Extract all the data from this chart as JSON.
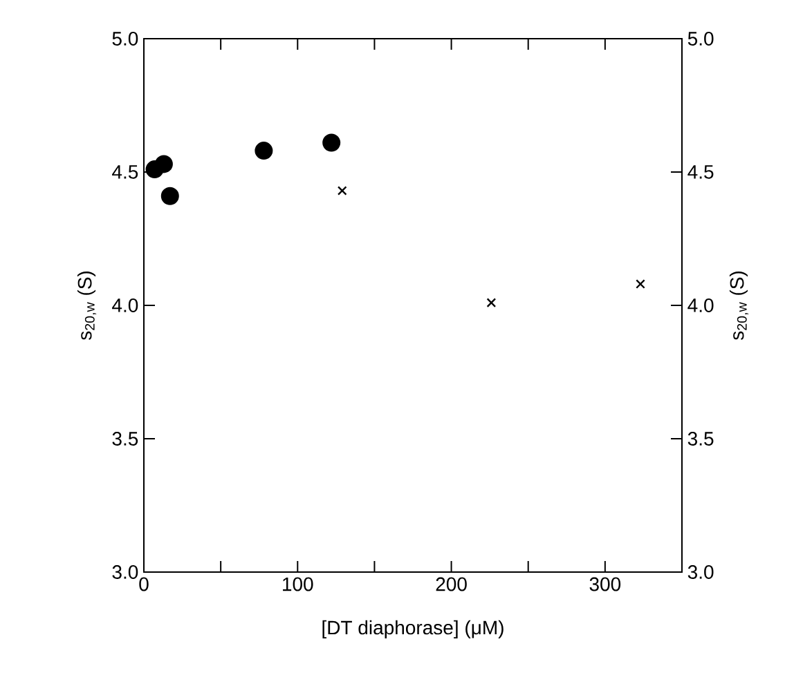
{
  "chart_data": {
    "type": "scatter",
    "xlabel": "[DT diaphorase] (μM)",
    "ylabel": "s$_{20,w}$  (S)",
    "y2label": "s$_{20,w}$  (S)",
    "xlim": [
      0,
      350
    ],
    "ylim": [
      3.0,
      5.0
    ],
    "y2lim": [
      3.0,
      5.0
    ],
    "xticks": [
      0,
      {
        "value": 50,
        "label": null
      },
      100,
      {
        "value": 150,
        "label": null
      },
      200,
      {
        "value": 250,
        "label": null
      },
      300
    ],
    "yticks": [
      {
        "value": 3.0,
        "label": "3.0"
      },
      {
        "value": 3.5,
        "label": "3.5"
      },
      {
        "value": 4.0,
        "label": "4.0"
      },
      {
        "value": 4.5,
        "label": "4.5"
      },
      {
        "value": 5.0,
        "label": "5.0"
      }
    ],
    "y2ticks": [
      {
        "value": 3.0,
        "label": "3.0"
      },
      {
        "value": 3.5,
        "label": "3.5"
      },
      {
        "value": 4.0,
        "label": "4.0"
      },
      {
        "value": 4.5,
        "label": "4.5"
      },
      {
        "value": 5.0,
        "label": "5.0"
      }
    ],
    "grid": false,
    "series": [
      {
        "color": "#000000",
        "marker": "circle",
        "x": [
          7,
          13,
          17,
          78,
          122
        ],
        "values": [
          4.51,
          4.53,
          4.41,
          4.58,
          4.61
        ]
      },
      {
        "color": "#000000",
        "marker": "cross",
        "x": [
          129,
          226,
          323
        ],
        "values": [
          4.43,
          4.01,
          4.08
        ]
      }
    ]
  }
}
